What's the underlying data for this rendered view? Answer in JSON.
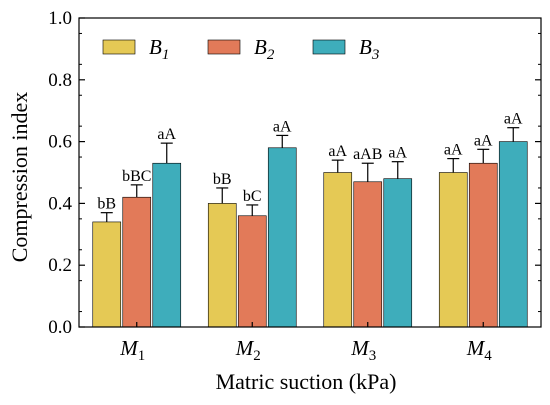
{
  "chart_data": {
    "type": "bar",
    "xlabel": "Matric suction (kPa)",
    "ylabel": "Compression index",
    "ylim": [
      0,
      1.0
    ],
    "yticks": [
      "0.0",
      "0.2",
      "0.4",
      "0.6",
      "0.8",
      "1.0"
    ],
    "grid": false,
    "legend_position": "top-left",
    "categories": [
      {
        "base": "M",
        "sub": "1"
      },
      {
        "base": "M",
        "sub": "2"
      },
      {
        "base": "M",
        "sub": "3"
      },
      {
        "base": "M",
        "sub": "4"
      }
    ],
    "series": [
      {
        "name": "B",
        "sub": "1",
        "color": "#e5c955",
        "values": [
          0.34,
          0.4,
          0.5,
          0.5
        ],
        "errors": [
          0.03,
          0.05,
          0.04,
          0.045
        ],
        "labels": [
          "bB",
          "bB",
          "aA",
          "aA"
        ]
      },
      {
        "name": "B",
        "sub": "2",
        "color": "#e27a59",
        "values": [
          0.42,
          0.36,
          0.47,
          0.53
        ],
        "errors": [
          0.04,
          0.035,
          0.06,
          0.045
        ],
        "labels": [
          "bBC",
          "bC",
          "aAB",
          "aA"
        ]
      },
      {
        "name": "B",
        "sub": "3",
        "color": "#3eadbb",
        "values": [
          0.53,
          0.58,
          0.48,
          0.6
        ],
        "errors": [
          0.065,
          0.04,
          0.055,
          0.045
        ],
        "labels": [
          "aA",
          "aA",
          "aA",
          "aA"
        ]
      }
    ]
  }
}
